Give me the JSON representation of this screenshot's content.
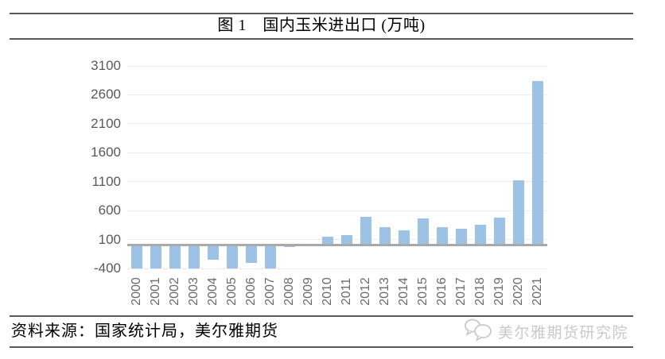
{
  "title": {
    "text": "图 1　国内玉米进出口 (万吨)"
  },
  "footer": {
    "source_note": "资料来源：国家统计局，美尔雅期货",
    "watermark_text": "美尔雅期货研究院"
  },
  "colors": {
    "bar": "#9CC2E5",
    "gridline": "#ECECEC",
    "zero_line": "#A9A9A9",
    "rule": "#595959",
    "tick_label": "#5F5F5F",
    "watermark": "#C9C9C9",
    "background": "#FFFFFF"
  },
  "chart_data": {
    "type": "bar",
    "title": "图 1　国内玉米进出口 (万吨)",
    "unit": "万吨",
    "xlabel": "",
    "ylabel": "",
    "legend": "none",
    "grid": "horizontal",
    "ylim": [
      -400,
      3100
    ],
    "ytick_step": 500,
    "yticks": [
      3100,
      2600,
      2100,
      1600,
      1100,
      600,
      100,
      -400
    ],
    "categories": [
      "2000",
      "2001",
      "2002",
      "2003",
      "2004",
      "2005",
      "2006",
      "2007",
      "2008",
      "2009",
      "2010",
      "2011",
      "2012",
      "2013",
      "2014",
      "2015",
      "2016",
      "2017",
      "2018",
      "2019",
      "2020",
      "2021"
    ],
    "values": [
      -400,
      -400,
      -400,
      -400,
      -250,
      -400,
      -310,
      -400,
      -25,
      0,
      150,
      170,
      495,
      315,
      260,
      470,
      315,
      280,
      350,
      480,
      1130,
      2835
    ],
    "note": "2000-2003、2005、2007 bars reach the chart bottom (clipped at axis minimum -400)"
  }
}
